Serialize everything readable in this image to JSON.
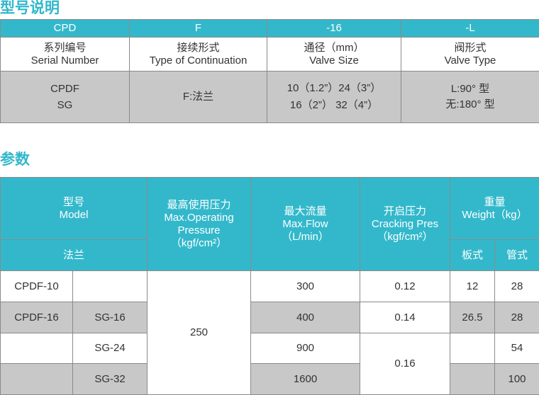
{
  "section1": {
    "title": "型号说明",
    "codes": [
      "CPD",
      "F",
      "-16",
      "-L"
    ],
    "labels": [
      [
        "系列编号",
        "Serial Number"
      ],
      [
        "接续形式",
        "Type of Continuation"
      ],
      [
        "通径（mm）",
        "Valve Size"
      ],
      [
        "阀形式",
        "Valve Type"
      ]
    ],
    "values": [
      [
        "CPDF",
        "SG"
      ],
      [
        "F:法兰",
        ""
      ],
      [
        "10（1.2”）24（3”）",
        "16（2”） 32（4”）"
      ],
      [
        "L:90° 型",
        "无:180° 型"
      ]
    ]
  },
  "section2": {
    "title": "参数",
    "headers": {
      "model": [
        "型号",
        "Model"
      ],
      "flange": "法兰",
      "pressure": [
        "最高使用压力",
        "Max.Operating",
        "Pressure",
        "（kgf/cm²）"
      ],
      "flow": [
        "最大流量",
        "Max.Flow",
        "（L/min）"
      ],
      "cracking": [
        "开启压力",
        "Cracking Pres",
        "（kgf/cm²）"
      ],
      "weight": [
        "重量",
        "Weight（kg）"
      ],
      "plate": "板式",
      "pipe": "管式"
    },
    "pressure_value": "250",
    "rows": [
      {
        "cpdf": "CPDF-10",
        "sg": "",
        "flow": "300",
        "cracking": "0.12",
        "plate": "12",
        "pipe": "28"
      },
      {
        "cpdf": "CPDF-16",
        "sg": "SG-16",
        "flow": "400",
        "cracking": "0.14",
        "plate": "26.5",
        "pipe": "28"
      },
      {
        "cpdf": "",
        "sg": "SG-24",
        "flow": "900",
        "cracking": "0.16",
        "plate": "",
        "pipe": "54"
      },
      {
        "cpdf": "",
        "sg": "SG-32",
        "flow": "1600",
        "plate": "",
        "pipe": "100"
      }
    ]
  },
  "colors": {
    "accent": "#33b8cb",
    "row_gray": "#c8c8c8"
  }
}
